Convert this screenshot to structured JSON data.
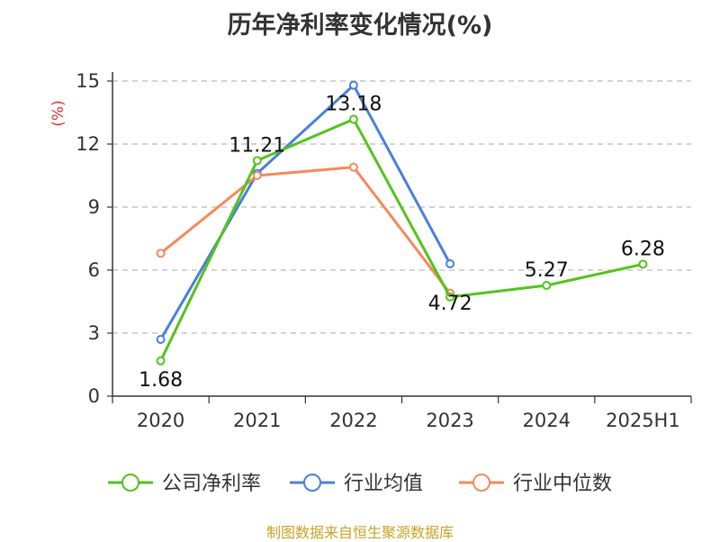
{
  "chart_data": {
    "type": "line",
    "title": "历年净利率变化情况(%)",
    "ylabel": "(%)",
    "xlabel": "",
    "categories": [
      "2020",
      "2021",
      "2022",
      "2023",
      "2024",
      "2025H1"
    ],
    "ylim": [
      0,
      15
    ],
    "yticks": [
      0,
      3,
      6,
      9,
      12,
      15
    ],
    "grid": true,
    "legend_position": "bottom",
    "series": [
      {
        "name": "公司净利率",
        "color": "#52c41a",
        "values": [
          1.68,
          11.21,
          13.18,
          4.72,
          5.27,
          6.28
        ],
        "labels": [
          "1.68",
          "11.21",
          "13.18",
          "4.72",
          "5.27",
          "6.28"
        ]
      },
      {
        "name": "行业均值",
        "color": "#4a7fdc",
        "values": [
          2.7,
          10.6,
          14.8,
          6.3,
          null,
          null
        ]
      },
      {
        "name": "行业中位数",
        "color": "#f5895a",
        "values": [
          6.8,
          10.5,
          10.9,
          4.9,
          null,
          null
        ]
      }
    ]
  },
  "source": "制图数据来自恒生聚源数据库"
}
